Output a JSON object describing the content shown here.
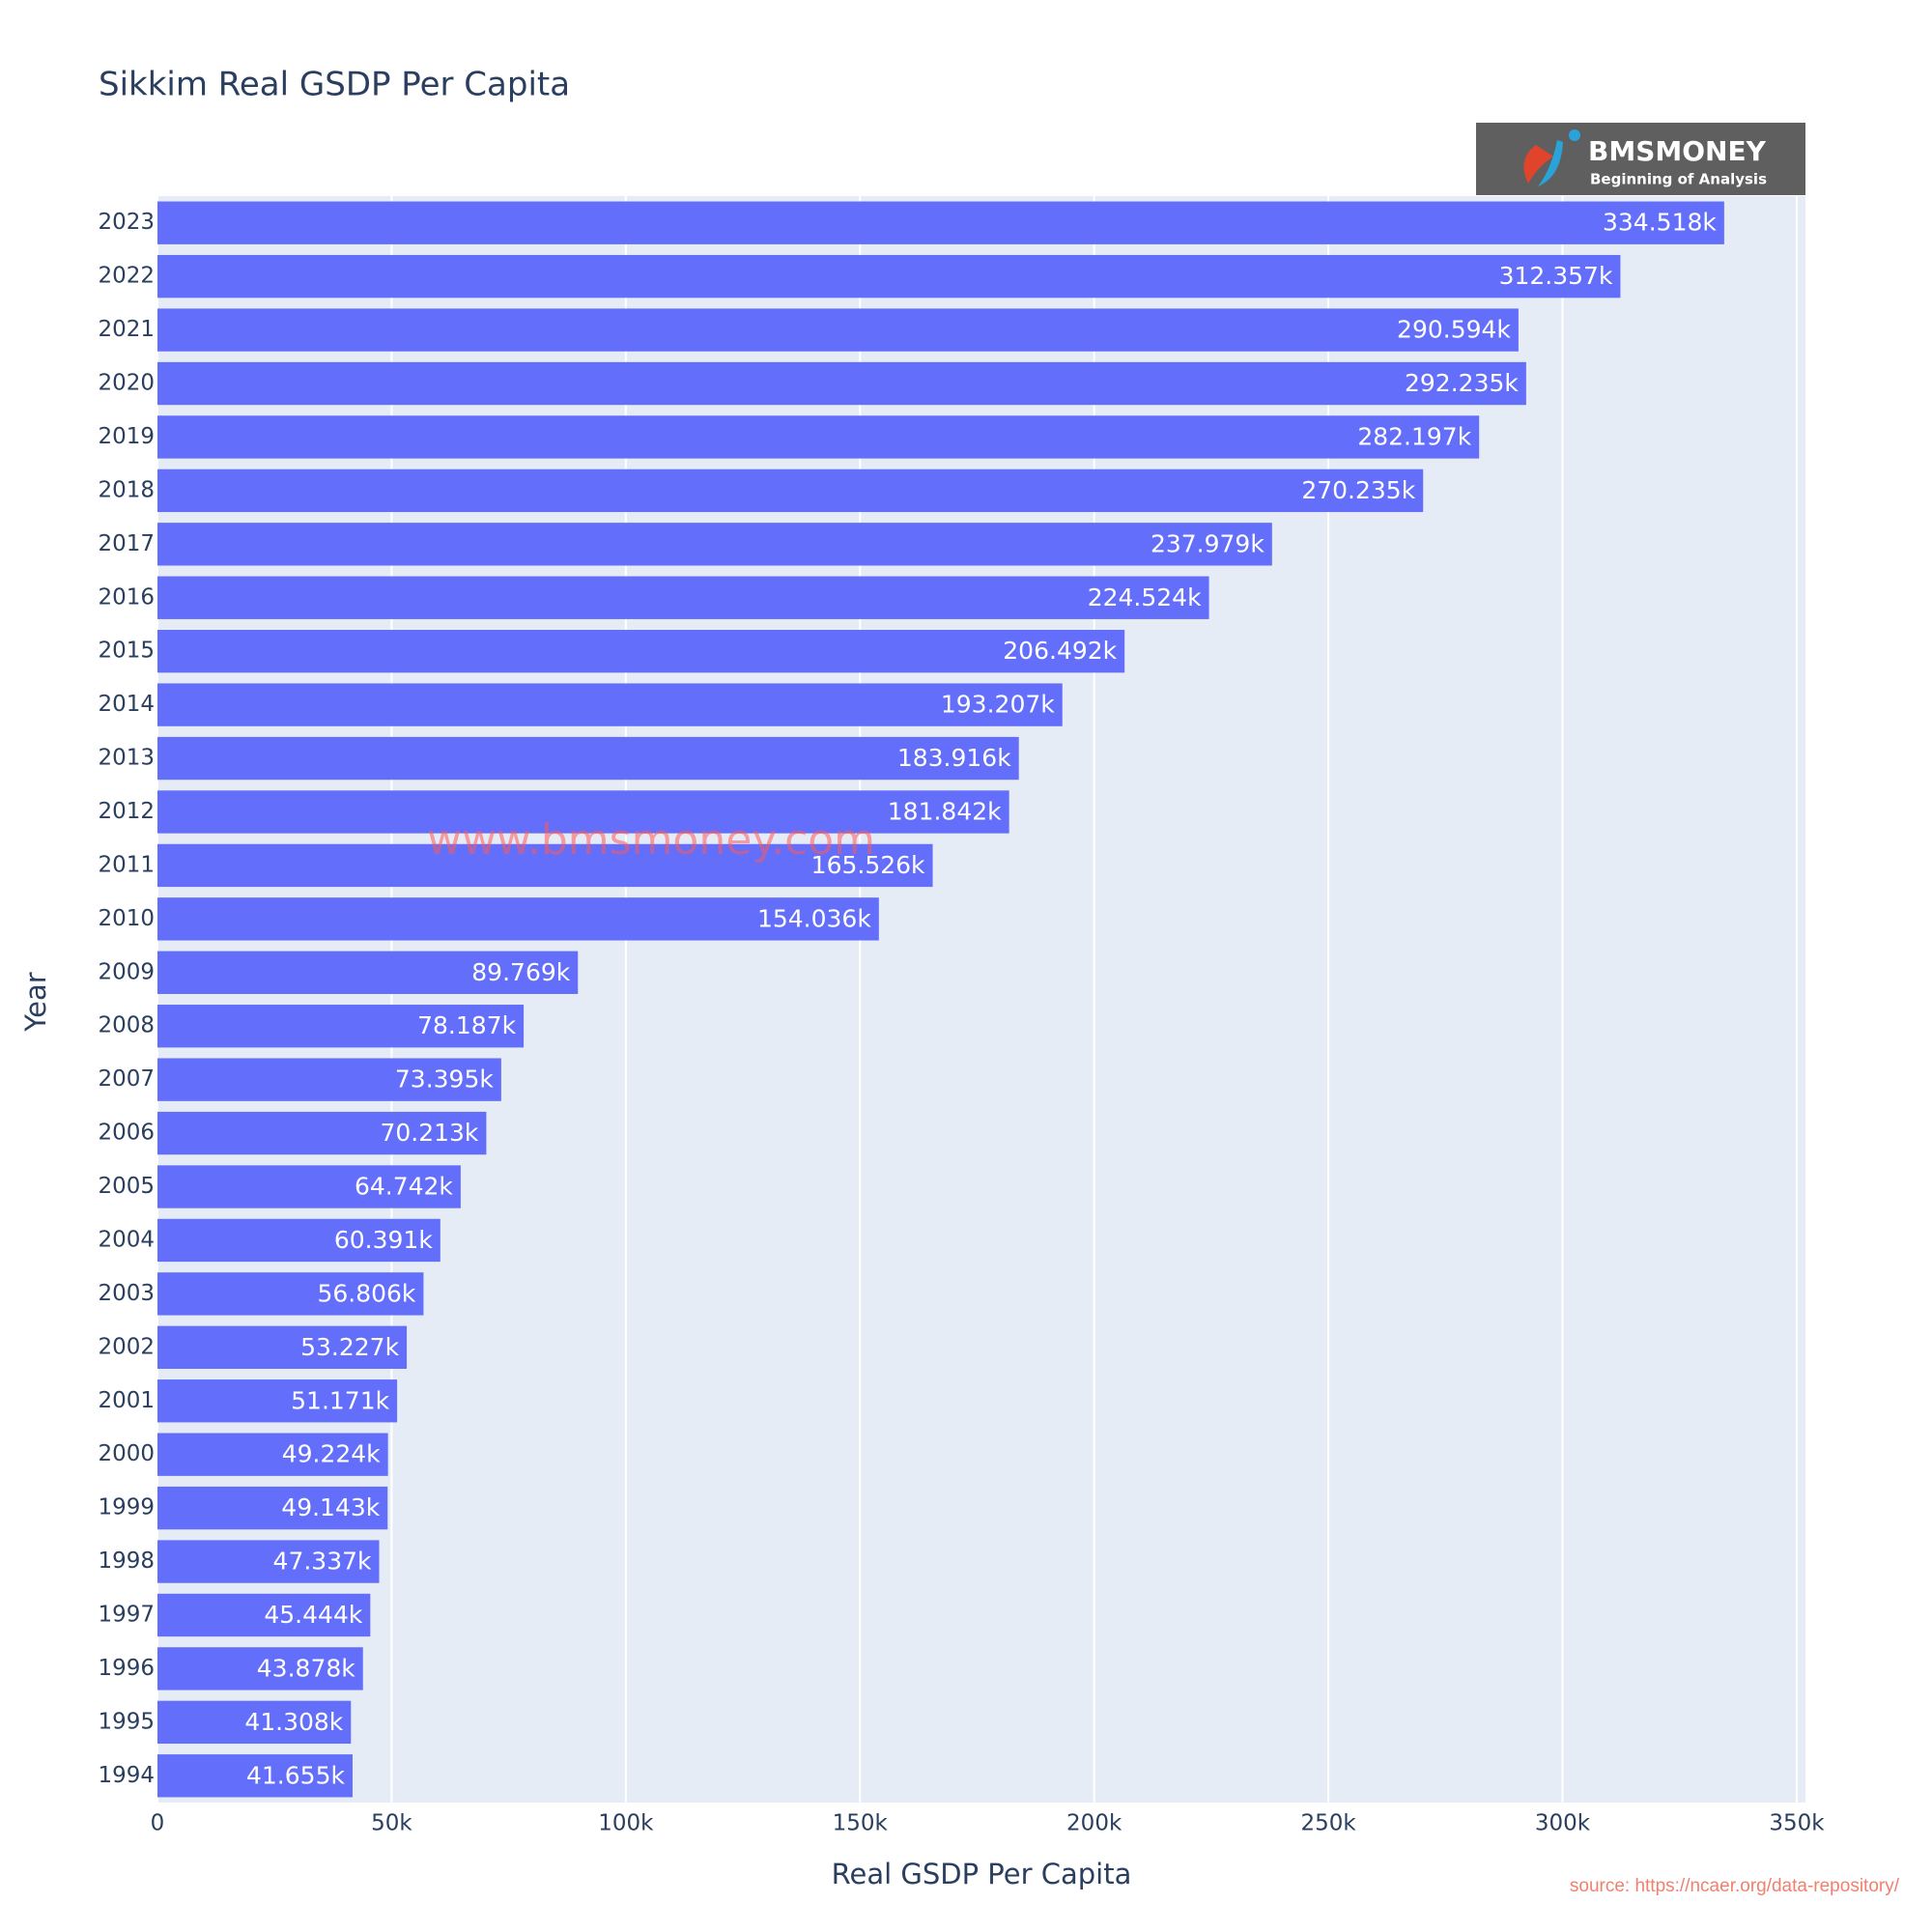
{
  "chart_data": {
    "type": "bar",
    "orientation": "horizontal",
    "title": "Sikkim Real GSDP Per Capita",
    "x_label": "Real GSDP Per Capita",
    "y_label": "Year",
    "categories": [
      "1994",
      "1995",
      "1996",
      "1997",
      "1998",
      "1999",
      "2000",
      "2001",
      "2002",
      "2003",
      "2004",
      "2005",
      "2006",
      "2007",
      "2008",
      "2009",
      "2010",
      "2011",
      "2012",
      "2013",
      "2014",
      "2015",
      "2016",
      "2017",
      "2018",
      "2019",
      "2020",
      "2021",
      "2022",
      "2023"
    ],
    "values": [
      41655,
      41308,
      43878,
      45444,
      47337,
      49143,
      49224,
      51171,
      53227,
      56806,
      60391,
      64742,
      70213,
      73395,
      78187,
      89769,
      154036,
      165526,
      181842,
      183916,
      193207,
      206492,
      224524,
      237979,
      270235,
      282197,
      292235,
      290594,
      312357,
      334518
    ],
    "value_labels": [
      "41.655k",
      "41.308k",
      "43.878k",
      "45.444k",
      "47.337k",
      "49.143k",
      "49.224k",
      "51.171k",
      "53.227k",
      "56.806k",
      "60.391k",
      "64.742k",
      "70.213k",
      "73.395k",
      "78.187k",
      "89.769k",
      "154.036k",
      "165.526k",
      "181.842k",
      "183.916k",
      "193.207k",
      "206.492k",
      "224.524k",
      "237.979k",
      "270.235k",
      "282.197k",
      "292.235k",
      "290.594k",
      "312.357k",
      "334.518k"
    ],
    "color": "#636efa",
    "xlim": [
      0,
      351870
    ],
    "xticks": [
      0,
      {
        "value": 50000,
        "label": "50k"
      },
      {
        "value": 100000,
        "label": "100k"
      },
      {
        "value": 150000,
        "label": "150k"
      },
      {
        "value": 200000,
        "label": "200k"
      },
      {
        "value": 250000,
        "label": "250k"
      },
      {
        "value": 300000,
        "label": "300k"
      },
      {
        "value": 350000,
        "label": "350k"
      }
    ],
    "grid": true,
    "logo_title": "BMSMONEY",
    "logo_subtitle": "Beginning of Analysis",
    "watermark": "www.bmsmoney.com",
    "source": "source: https://ncaer.org/data-repository/"
  }
}
